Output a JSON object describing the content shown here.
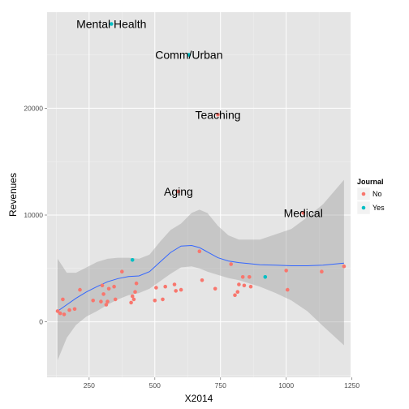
{
  "chart_data": {
    "type": "scatter",
    "xlabel": "X2014",
    "ylabel": "Revenues",
    "xlim": [
      90,
      1245
    ],
    "ylim": [
      -5200,
      29000
    ],
    "x_ticks": [
      250,
      500,
      750,
      1000,
      1250
    ],
    "x_tick_labels": [
      "250",
      "500",
      "750",
      "1000",
      "1250"
    ],
    "y_ticks": [
      0,
      10000,
      20000
    ],
    "y_tick_labels": [
      "0",
      "10000",
      "20000"
    ],
    "grid": true,
    "legend": {
      "title": "Journal",
      "position": "right",
      "entries": [
        {
          "label": "No",
          "color": "#F8766D"
        },
        {
          "label": "Yes",
          "color": "#00BFC4"
        }
      ]
    },
    "series": [
      {
        "name": "No",
        "color": "#F8766D",
        "points": [
          [
            130,
            1000
          ],
          [
            140,
            800
          ],
          [
            150,
            2100
          ],
          [
            155,
            700
          ],
          [
            175,
            1100
          ],
          [
            195,
            1200
          ],
          [
            215,
            3000
          ],
          [
            265,
            2000
          ],
          [
            295,
            1900
          ],
          [
            300,
            3400
          ],
          [
            305,
            2600
          ],
          [
            315,
            1600
          ],
          [
            320,
            1900
          ],
          [
            325,
            3100
          ],
          [
            345,
            3300
          ],
          [
            350,
            2100
          ],
          [
            375,
            4700
          ],
          [
            410,
            1800
          ],
          [
            415,
            2400
          ],
          [
            420,
            2100
          ],
          [
            425,
            2800
          ],
          [
            430,
            3600
          ],
          [
            500,
            2000
          ],
          [
            505,
            3200
          ],
          [
            530,
            2100
          ],
          [
            540,
            3300
          ],
          [
            575,
            3500
          ],
          [
            580,
            2900
          ],
          [
            590,
            12200
          ],
          [
            600,
            3000
          ],
          [
            670,
            6600
          ],
          [
            680,
            3900
          ],
          [
            730,
            3100
          ],
          [
            740,
            19400
          ],
          [
            790,
            5400
          ],
          [
            805,
            2500
          ],
          [
            815,
            2800
          ],
          [
            820,
            3500
          ],
          [
            835,
            4200
          ],
          [
            840,
            3400
          ],
          [
            860,
            4200
          ],
          [
            865,
            3300
          ],
          [
            1000,
            4800
          ],
          [
            1005,
            3000
          ],
          [
            1065,
            10200
          ],
          [
            1135,
            4700
          ],
          [
            1220,
            5200
          ]
        ]
      },
      {
        "name": "Yes",
        "color": "#00BFC4",
        "points": [
          [
            335,
            27900
          ],
          [
            415,
            5800
          ],
          [
            630,
            25000
          ],
          [
            920,
            4200
          ]
        ]
      }
    ],
    "smooth": {
      "color": "#3366FF",
      "band_color": "#999999",
      "x": [
        130,
        165,
        200,
        240,
        280,
        320,
        360,
        400,
        440,
        480,
        520,
        560,
        600,
        640,
        670,
        700,
        740,
        780,
        820,
        860,
        900,
        960,
        1020,
        1080,
        1140,
        1220
      ],
      "y": [
        1000,
        1600,
        2200,
        2800,
        3300,
        3750,
        4050,
        4250,
        4300,
        4700,
        5600,
        6500,
        7100,
        7150,
        6950,
        6550,
        6000,
        5700,
        5550,
        5450,
        5350,
        5300,
        5250,
        5250,
        5300,
        5500
      ],
      "lower": [
        -3600,
        -1500,
        -300,
        500,
        1000,
        1600,
        2100,
        2500,
        2700,
        3100,
        3800,
        4500,
        5100,
        5200,
        5000,
        4700,
        4400,
        4100,
        3900,
        3600,
        3300,
        2700,
        2000,
        1000,
        -400,
        -2200
      ],
      "upper": [
        5900,
        4600,
        4600,
        5100,
        5600,
        5900,
        6000,
        6000,
        5900,
        6300,
        7500,
        8600,
        9200,
        10200,
        10500,
        10200,
        9000,
        8100,
        7700,
        7700,
        7700,
        8200,
        8700,
        9800,
        11000,
        13300
      ]
    },
    "annotations": [
      {
        "label": "Mental Health",
        "x": 335,
        "y": 27900
      },
      {
        "label": "Comm/Urban",
        "x": 630,
        "y": 25000
      },
      {
        "label": "Teaching",
        "x": 740,
        "y": 19400
      },
      {
        "label": "Aging",
        "x": 590,
        "y": 12200
      },
      {
        "label": "Medical",
        "x": 1065,
        "y": 10200
      }
    ]
  }
}
